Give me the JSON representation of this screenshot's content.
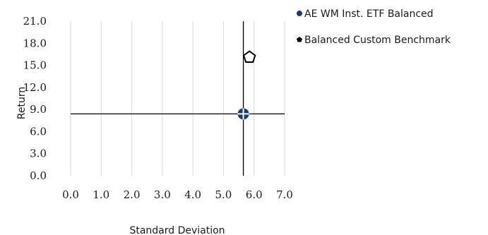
{
  "chart_data": {
    "type": "scatter",
    "title": "",
    "xlabel": "Standard Deviation",
    "ylabel": "Return",
    "xlim": [
      0,
      7
    ],
    "ylim": [
      0,
      21
    ],
    "x_ticks": [
      "0.0",
      "1.0",
      "2.0",
      "3.0",
      "4.0",
      "5.0",
      "6.0",
      "7.0"
    ],
    "y_ticks": [
      "0.0",
      "3.0",
      "6.0",
      "9.0",
      "12.0",
      "15.0",
      "18.0",
      "21.0"
    ],
    "grid": "vertical",
    "legend_position": "top-right",
    "series": [
      {
        "name": "AE WM Inst. ETF Balanced",
        "marker": "circle-cross",
        "color": "#1f3a6e",
        "points": [
          {
            "x": 5.65,
            "y": 8.4
          }
        ],
        "crosshair": true
      },
      {
        "name": "Balanced Custom Benchmark",
        "marker": "pentagon",
        "color": "#000000",
        "points": [
          {
            "x": 5.85,
            "y": 16.1
          }
        ]
      }
    ]
  }
}
